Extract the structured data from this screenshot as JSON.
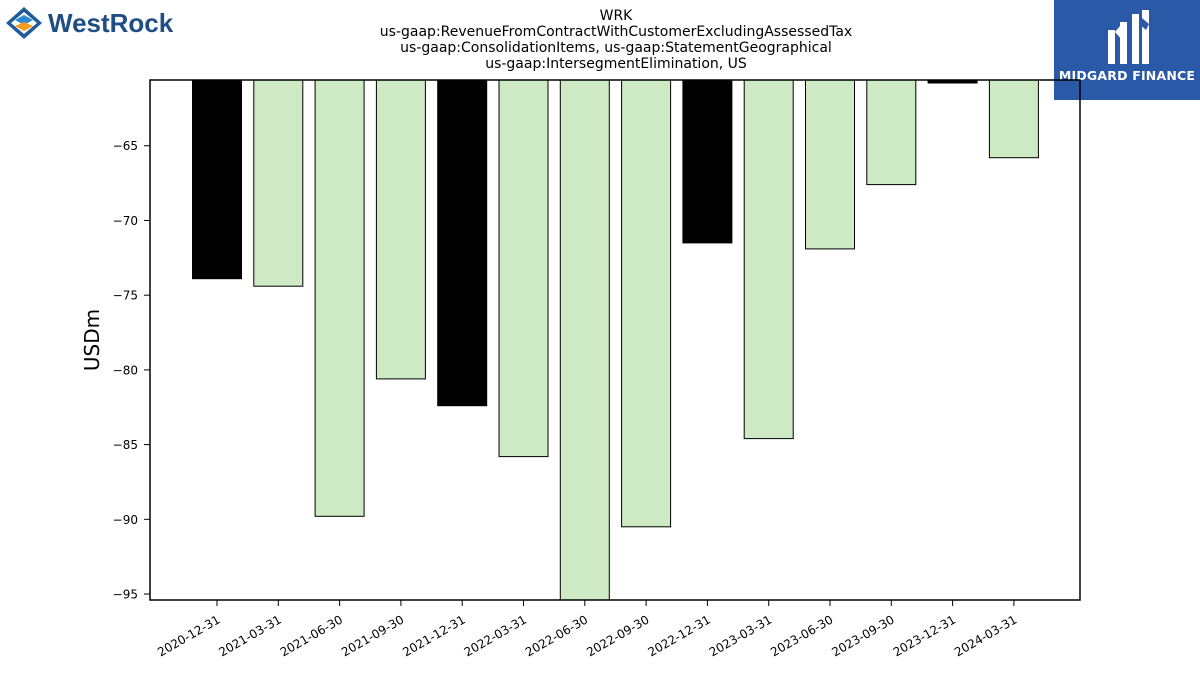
{
  "logos": {
    "left_brand": "WestRock",
    "right_brand": "MIDGARD FINANCE"
  },
  "chart_data": {
    "type": "bar",
    "title_lines": [
      "WRK",
      "us-gaap:RevenueFromContractWithCustomerExcludingAssessedTax",
      "us-gaap:ConsolidationItems, us-gaap:StatementGeographical",
      "us-gaap:IntersegmentElimination, US"
    ],
    "ylabel": "USDm",
    "xlabel": "",
    "categories": [
      "2020-12-31",
      "2021-03-31",
      "2021-06-30",
      "2021-09-30",
      "2021-12-31",
      "2022-03-31",
      "2022-06-30",
      "2022-09-30",
      "2022-12-31",
      "2023-03-31",
      "2023-06-30",
      "2023-09-30",
      "2023-12-31",
      "2024-03-31"
    ],
    "values": [
      -73.9,
      -74.4,
      -89.8,
      -80.6,
      -82.4,
      -85.8,
      -95.4,
      -90.5,
      -71.5,
      -84.6,
      -71.9,
      -67.6,
      -60.8,
      -65.8
    ],
    "bar_colors": [
      "#000000",
      "#cdeac5",
      "#cdeac5",
      "#cdeac5",
      "#000000",
      "#cdeac5",
      "#cdeac5",
      "#cdeac5",
      "#000000",
      "#cdeac5",
      "#cdeac5",
      "#cdeac5",
      "#000000",
      "#cdeac5"
    ],
    "ylim": [
      -95.4,
      -60.6
    ],
    "yticks": [
      -65,
      -70,
      -75,
      -80,
      -85,
      -90,
      -95
    ],
    "grid": false
  }
}
